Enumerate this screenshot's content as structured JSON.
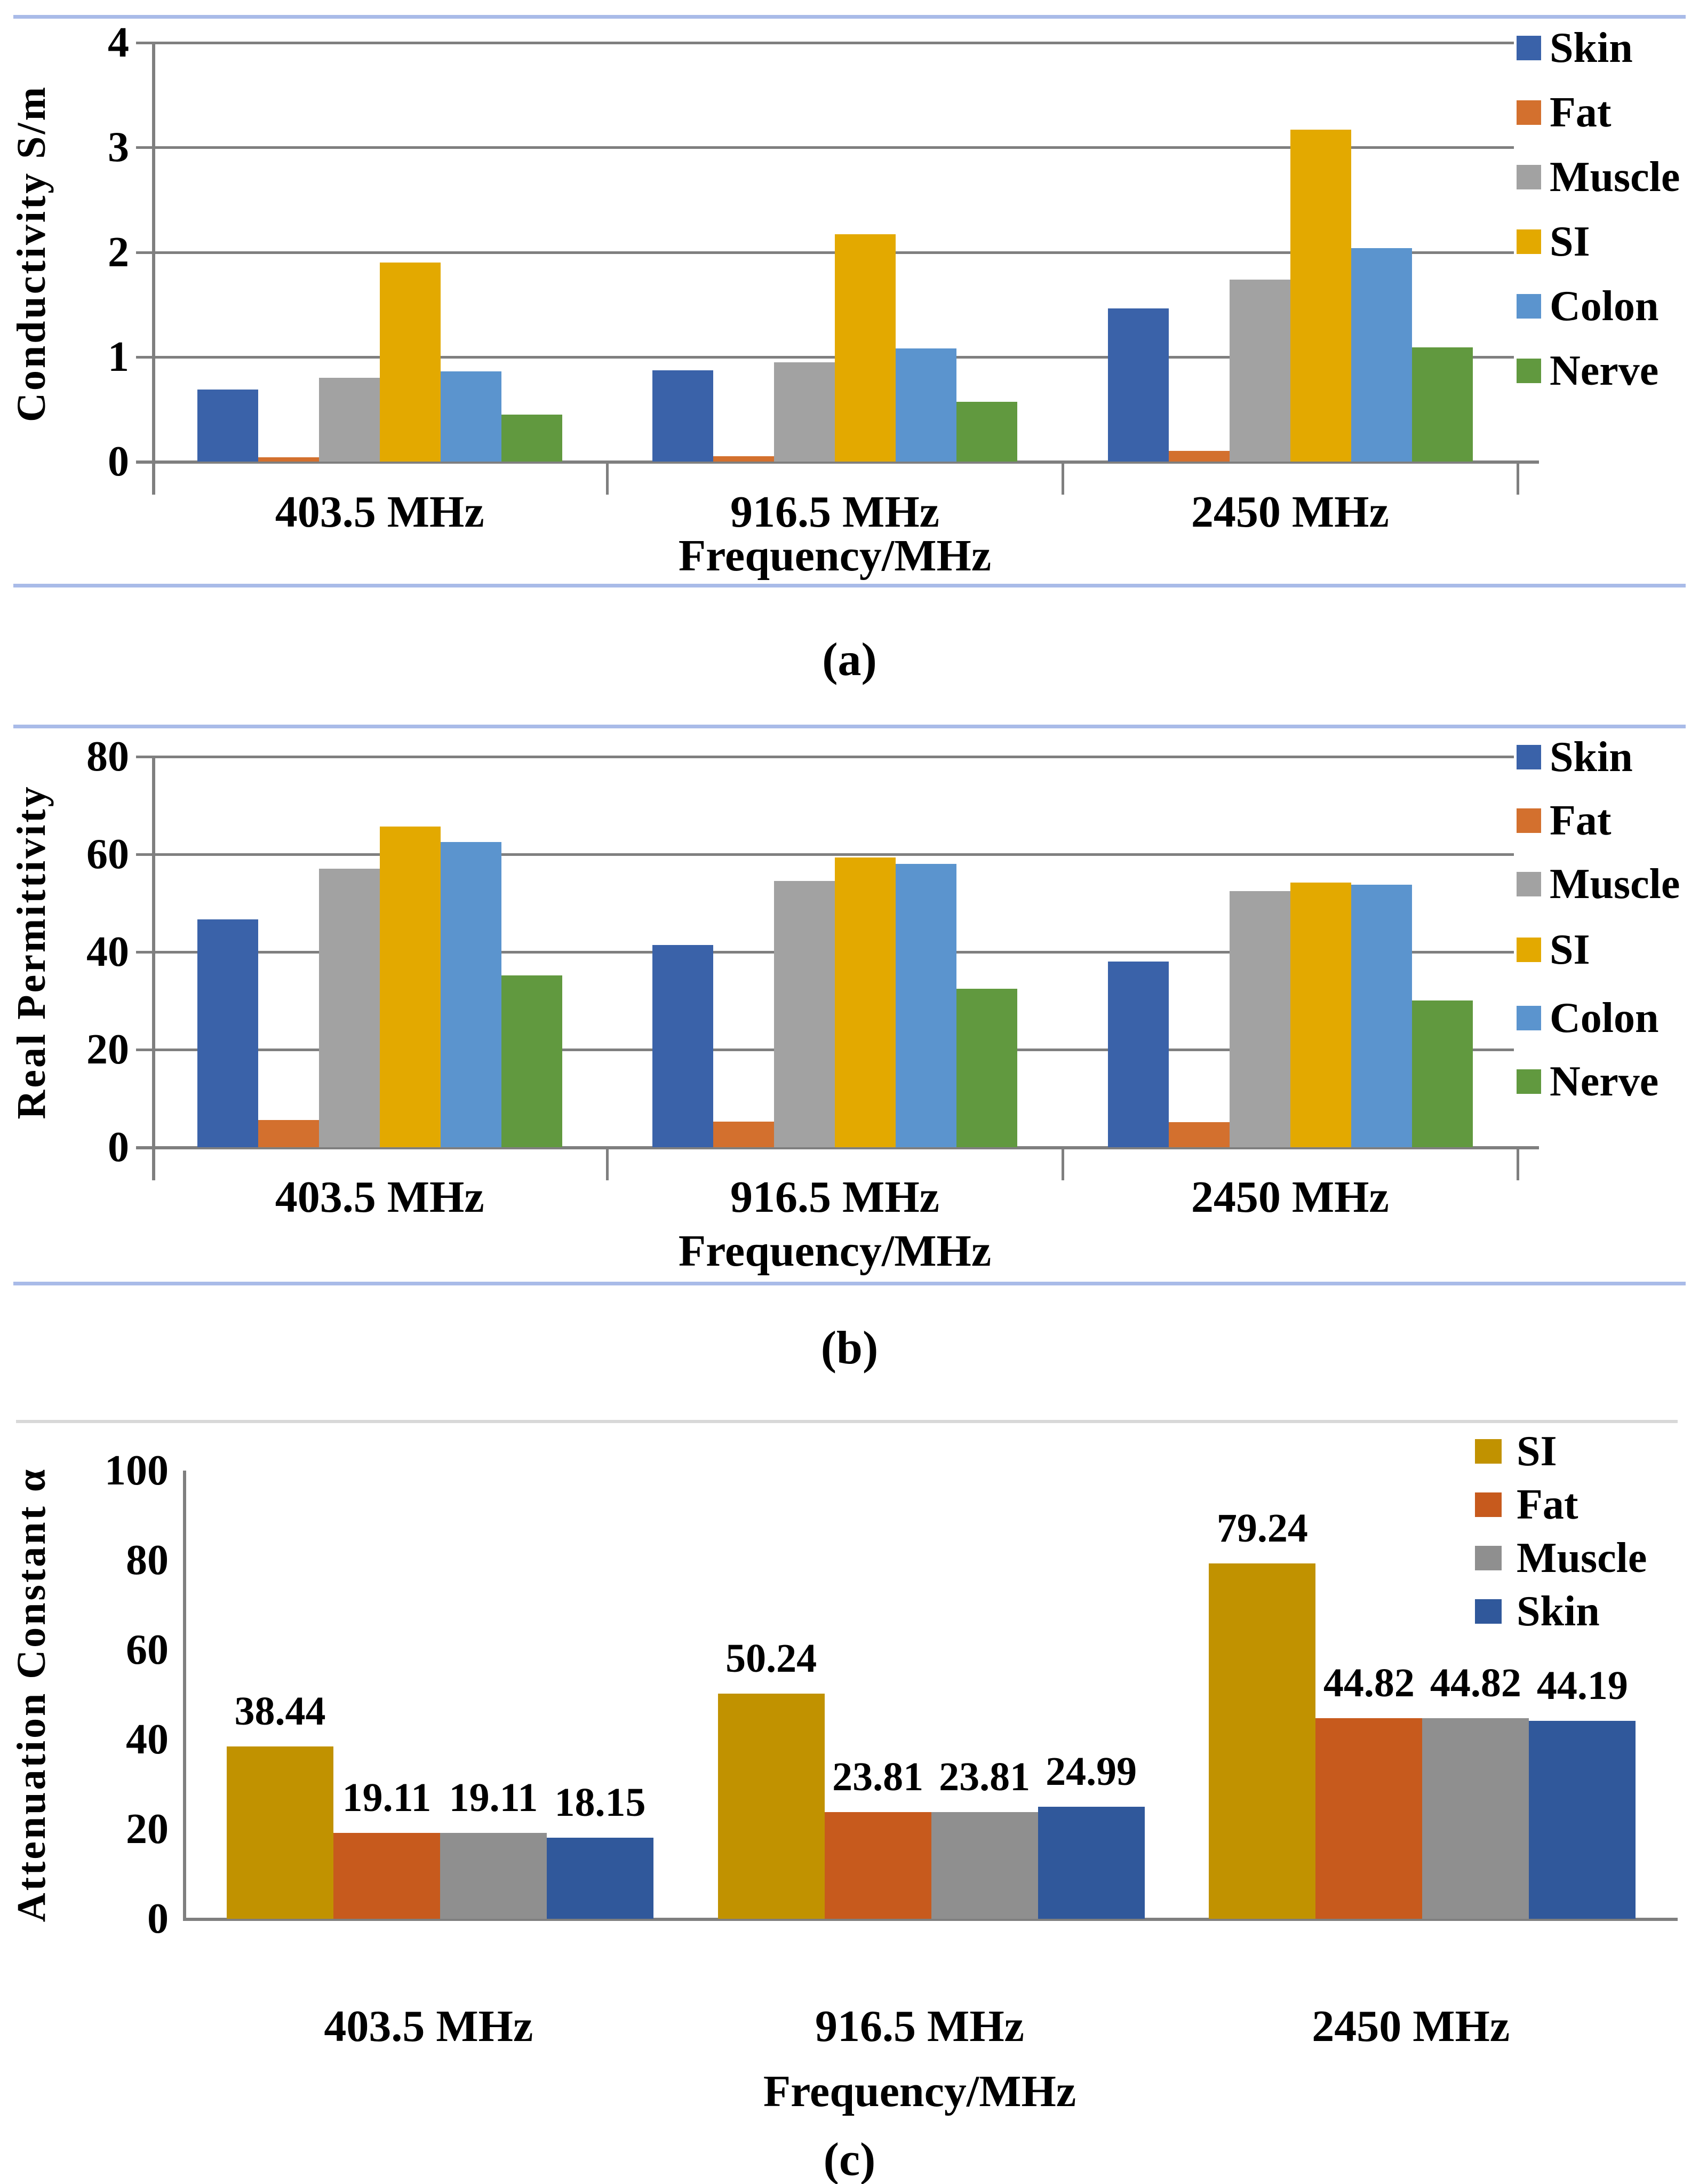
{
  "figure": {
    "x_axis_title": "Frequency/MHz",
    "categories": [
      "403.5 MHz",
      "916.5 MHz",
      "2450 MHz"
    ],
    "divider_colors": {
      "blue": "#a9bbe8",
      "gray": "#d8d8d8"
    },
    "axis_color": "#7f7f7f"
  },
  "chart_data": [
    {
      "id": "a",
      "type": "bar",
      "title": "",
      "ylabel": "Conductivity S/m",
      "xlabel": "Frequency/MHz",
      "caption": "(a)",
      "ylim": [
        0,
        4
      ],
      "yticks": [
        0,
        1,
        2,
        3,
        4
      ],
      "grid": true,
      "legend_position": "right",
      "data_labels": false,
      "categories": [
        "403.5 MHz",
        "916.5 MHz",
        "2450 MHz"
      ],
      "series": [
        {
          "name": "Skin",
          "color": "#3a62a9",
          "values": [
            0.69,
            0.87,
            1.46
          ]
        },
        {
          "name": "Fat",
          "color": "#d3702e",
          "values": [
            0.04,
            0.05,
            0.1
          ]
        },
        {
          "name": "Muscle",
          "color": "#a2a2a2",
          "values": [
            0.8,
            0.95,
            1.74
          ]
        },
        {
          "name": "SI",
          "color": "#e3a900",
          "values": [
            1.9,
            2.17,
            3.17
          ]
        },
        {
          "name": "Colon",
          "color": "#5b94ce",
          "values": [
            0.86,
            1.08,
            2.04
          ]
        },
        {
          "name": "Nerve",
          "color": "#61993f",
          "values": [
            0.45,
            0.57,
            1.09
          ]
        }
      ]
    },
    {
      "id": "b",
      "type": "bar",
      "title": "",
      "ylabel": "Real Permittivity",
      "xlabel": "Frequency/MHz",
      "caption": "(b)",
      "ylim": [
        0,
        80
      ],
      "yticks": [
        0,
        20,
        40,
        60,
        80
      ],
      "grid": true,
      "legend_position": "right",
      "data_labels": false,
      "categories": [
        "403.5 MHz",
        "916.5 MHz",
        "2450 MHz"
      ],
      "series": [
        {
          "name": "Skin",
          "color": "#3a62a9",
          "values": [
            46.7,
            41.4,
            38.0
          ]
        },
        {
          "name": "Fat",
          "color": "#d3702e",
          "values": [
            5.6,
            5.2,
            5.1
          ]
        },
        {
          "name": "Muscle",
          "color": "#a2a2a2",
          "values": [
            57.1,
            54.5,
            52.5
          ]
        },
        {
          "name": "SI",
          "color": "#e3a900",
          "values": [
            65.7,
            59.3,
            54.2
          ]
        },
        {
          "name": "Colon",
          "color": "#5b94ce",
          "values": [
            62.5,
            58.0,
            53.8
          ]
        },
        {
          "name": "Nerve",
          "color": "#61993f",
          "values": [
            35.2,
            32.5,
            30.1
          ]
        }
      ]
    },
    {
      "id": "c",
      "type": "bar",
      "title": "",
      "ylabel": "Attenuation Constant α",
      "xlabel": "Frequency/MHz",
      "caption": "(c)",
      "ylim": [
        0,
        100
      ],
      "yticks": [
        0,
        20,
        40,
        60,
        80,
        100
      ],
      "grid": false,
      "legend_position": "top-right",
      "data_labels": true,
      "categories": [
        "403.5 MHz",
        "916.5 MHz",
        "2450 MHz"
      ],
      "series": [
        {
          "name": "SI",
          "color": "#c19200",
          "values": [
            38.44,
            50.24,
            79.24
          ]
        },
        {
          "name": "Fat",
          "color": "#c75a1d",
          "values": [
            19.11,
            23.81,
            44.82
          ]
        },
        {
          "name": "Muscle",
          "color": "#8f8f8f",
          "values": [
            19.11,
            23.81,
            44.82
          ]
        },
        {
          "name": "Skin",
          "color": "#30589b",
          "values": [
            18.15,
            24.99,
            44.19
          ]
        }
      ]
    }
  ]
}
